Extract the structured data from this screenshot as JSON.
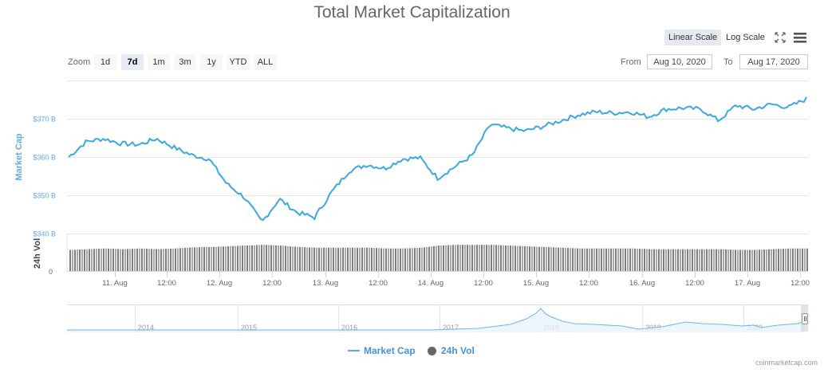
{
  "title": "Total Market Capitalization",
  "toolbar": {
    "linear_scale": "Linear Scale",
    "log_scale": "Log Scale",
    "fullscreen_icon": "fullscreen-icon",
    "menu_icon": "hamburger-menu-icon"
  },
  "zoom": {
    "label": "Zoom",
    "buttons": [
      "1d",
      "7d",
      "1m",
      "3m",
      "1y",
      "YTD",
      "ALL"
    ],
    "active": "7d"
  },
  "range": {
    "from_label": "From",
    "from_value": "Aug 10, 2020",
    "to_label": "To",
    "to_value": "Aug 17, 2020"
  },
  "axes": {
    "y_title": "Market Cap",
    "y_ticks": [
      "$370 B",
      "$360 B",
      "$350 B",
      "$340 B"
    ],
    "vol_title": "24h Vol",
    "vol_zero": "0",
    "x_ticks": [
      "11. Aug",
      "12:00",
      "12. Aug",
      "12:00",
      "13. Aug",
      "12:00",
      "14. Aug",
      "12:00",
      "15. Aug",
      "12:00",
      "16. Aug",
      "12:00",
      "17. Aug",
      "12:00"
    ]
  },
  "navigator": {
    "years": [
      "2014",
      "2015",
      "2016",
      "2017",
      "2018",
      "2019",
      "2020"
    ]
  },
  "legend": {
    "market_cap": "Market Cap",
    "vol": "24h Vol"
  },
  "credit": "coinmarketcap.com",
  "colors": {
    "line": "#3ba9e0",
    "axis_label": "#5aaee6",
    "bar": "#8a8a8a",
    "legend_text": "#4a90d9"
  },
  "chart_data": {
    "type": "line",
    "title": "Total Market Capitalization",
    "xlabel": "",
    "ylabel": "Market Cap",
    "ylim": [
      340,
      375
    ],
    "y_unit": "B USD",
    "x_range": [
      "Aug 10, 2020",
      "Aug 17, 2020"
    ],
    "series": [
      {
        "name": "Market Cap",
        "x": [
          "10 Aug 14:00",
          "10 Aug 18:00",
          "10 Aug 22:00",
          "11 Aug 02:00",
          "11 Aug 06:00",
          "11 Aug 10:00",
          "11 Aug 14:00",
          "11 Aug 18:00",
          "11 Aug 22:00",
          "12 Aug 02:00",
          "12 Aug 06:00",
          "12 Aug 10:00",
          "12 Aug 14:00",
          "12 Aug 18:00",
          "12 Aug 22:00",
          "13 Aug 02:00",
          "13 Aug 06:00",
          "13 Aug 10:00",
          "13 Aug 14:00",
          "13 Aug 18:00",
          "13 Aug 22:00",
          "14 Aug 02:00",
          "14 Aug 06:00",
          "14 Aug 10:00",
          "14 Aug 14:00",
          "14 Aug 18:00",
          "14 Aug 22:00",
          "15 Aug 02:00",
          "15 Aug 06:00",
          "15 Aug 10:00",
          "15 Aug 14:00",
          "15 Aug 18:00",
          "15 Aug 22:00",
          "16 Aug 02:00",
          "16 Aug 06:00",
          "16 Aug 10:00",
          "16 Aug 14:00",
          "16 Aug 18:00",
          "16 Aug 22:00",
          "17 Aug 02:00",
          "17 Aug 06:00",
          "17 Aug 10:00",
          "17 Aug 14:00"
        ],
        "values": [
          360.0,
          364.0,
          364.8,
          363.5,
          363.2,
          364.8,
          362.5,
          360.5,
          359.5,
          353.0,
          349.5,
          343.0,
          349.0,
          345.5,
          344.2,
          351.0,
          356.5,
          358.0,
          357.0,
          359.5,
          359.8,
          354.5,
          357.5,
          360.5,
          368.5,
          367.5,
          366.8,
          368.0,
          369.5,
          371.0,
          371.8,
          371.5,
          371.8,
          370.5,
          372.5,
          372.8,
          372.5,
          369.5,
          373.5,
          372.5,
          373.8,
          373.0,
          375.2
        ]
      },
      {
        "name": "24h Vol",
        "type": "column",
        "note": "relative volume, roughly flat across the week with slight rise Aug 14",
        "values_relative": [
          0.58,
          0.6,
          0.62,
          0.6,
          0.62,
          0.6,
          0.62,
          0.65,
          0.66,
          0.68,
          0.7,
          0.72,
          0.7,
          0.66,
          0.64,
          0.64,
          0.64,
          0.64,
          0.62,
          0.62,
          0.64,
          0.7,
          0.72,
          0.72,
          0.72,
          0.7,
          0.68,
          0.66,
          0.64,
          0.62,
          0.62,
          0.62,
          0.62,
          0.6,
          0.6,
          0.6,
          0.6,
          0.6,
          0.58,
          0.58,
          0.6,
          0.62,
          0.62
        ]
      }
    ],
    "y_ticks": [
      340,
      350,
      360,
      370
    ],
    "x_ticks": [
      "11. Aug",
      "12:00",
      "12. Aug",
      "12:00",
      "13. Aug",
      "12:00",
      "14. Aug",
      "12:00",
      "15. Aug",
      "12:00",
      "16. Aug",
      "12:00",
      "17. Aug",
      "12:00"
    ],
    "grid": true,
    "legend_position": "bottom",
    "navigator": {
      "x_range": [
        "2013",
        "2020"
      ],
      "year_labels": [
        "2014",
        "2015",
        "2016",
        "2017",
        "2018",
        "2019",
        "2020"
      ],
      "shape_note": "flat until 2017, sharp peak early 2018, then lower plateau with rise in 2020"
    }
  }
}
